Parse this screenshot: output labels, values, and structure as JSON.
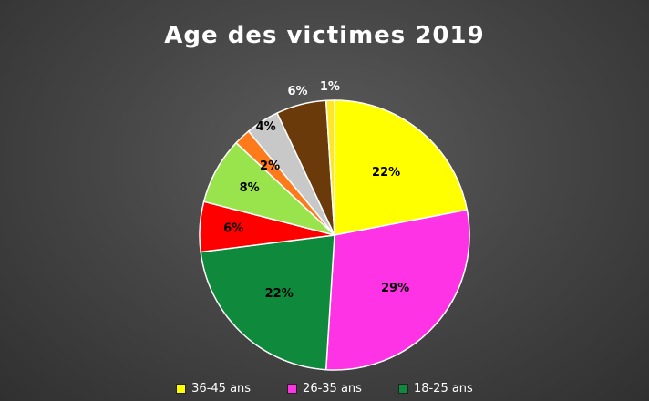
{
  "chart_data": {
    "type": "pie",
    "title": "Age des victimes 2019",
    "slices": [
      {
        "label": "22%",
        "value": 22,
        "color": "#ffff00",
        "name": "36-45 ans"
      },
      {
        "label": "29%",
        "value": 29,
        "color": "#ff33e6",
        "name": "26-35 ans"
      },
      {
        "label": "22%",
        "value": 22,
        "color": "#0f8a3c",
        "name": "18-25 ans"
      },
      {
        "label": "6%",
        "value": 6,
        "color": "#ff0000",
        "name": ""
      },
      {
        "label": "8%",
        "value": 8,
        "color": "#99e34d",
        "name": ""
      },
      {
        "label": "2%",
        "value": 2,
        "color": "#ff7a1a",
        "name": ""
      },
      {
        "label": "4%",
        "value": 4,
        "color": "#c8c8c8",
        "name": ""
      },
      {
        "label": "6%",
        "value": 6,
        "color": "#6b3a0a",
        "name": ""
      },
      {
        "label": "1%",
        "value": 1,
        "color": "#ffe62e",
        "name": ""
      }
    ],
    "legend": [
      {
        "name": "36-45 ans",
        "color": "#ffff00"
      },
      {
        "name": "26-35 ans",
        "color": "#ff33e6"
      },
      {
        "name": "18-25 ans",
        "color": "#0f8a3c"
      }
    ],
    "legend_position": "bottom"
  }
}
